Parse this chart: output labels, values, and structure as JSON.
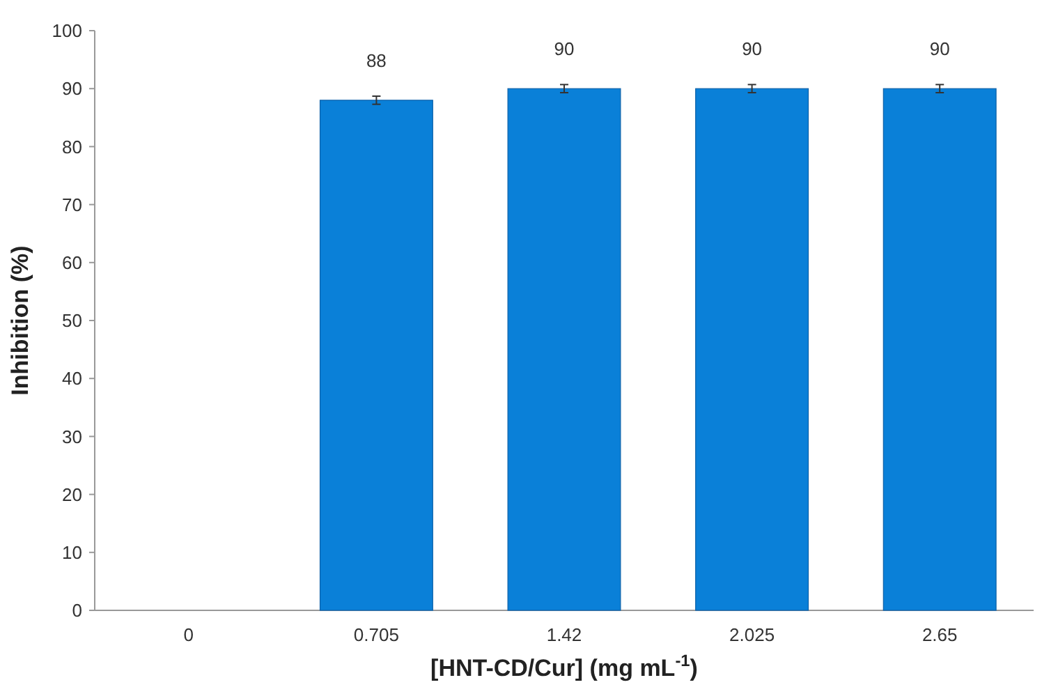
{
  "chart_data": {
    "type": "bar",
    "xlabel": "[HNT-CD/Cur] (mg mL$^{-1}$)",
    "ylabel": "Inhibition (%)",
    "categories": [
      "0",
      "0.705",
      "1.42",
      "2.025",
      "2.65"
    ],
    "values": [
      0,
      88,
      90,
      90,
      90
    ],
    "errors": [
      null,
      0.7,
      0.7,
      0.7,
      0.7
    ],
    "value_labels": [
      null,
      "88",
      "90",
      "90",
      "90"
    ],
    "color": "#0a80d8",
    "ylim": [
      0,
      100
    ],
    "yticks": [
      0,
      10,
      20,
      30,
      40,
      50,
      60,
      70,
      80,
      90,
      100
    ],
    "grid": false
  }
}
